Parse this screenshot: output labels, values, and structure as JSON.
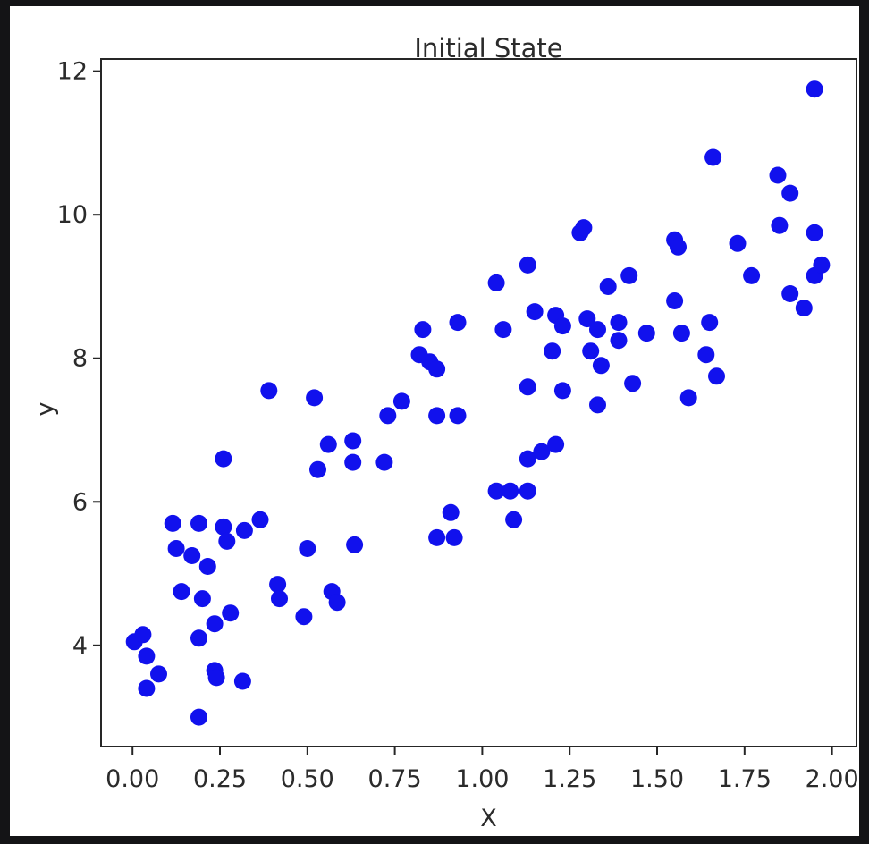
{
  "page": {
    "background_color": "#141416",
    "figure_background_color": "#ffffff"
  },
  "chart_data": {
    "type": "scatter",
    "title": "Initial State",
    "xlabel": "X",
    "ylabel": "y",
    "marker_color": "#1111ed",
    "axis_color": "#262626",
    "text_color": "#2b2b2b",
    "grid": false,
    "legend": "none",
    "xlim": [
      -0.09,
      2.07
    ],
    "ylim": [
      2.59,
      12.17
    ],
    "x_ticks": [
      {
        "v": 0.0,
        "label": "0.00"
      },
      {
        "v": 0.25,
        "label": "0.25"
      },
      {
        "v": 0.5,
        "label": "0.50"
      },
      {
        "v": 0.75,
        "label": "0.75"
      },
      {
        "v": 1.0,
        "label": "1.00"
      },
      {
        "v": 1.25,
        "label": "1.25"
      },
      {
        "v": 1.5,
        "label": "1.50"
      },
      {
        "v": 1.75,
        "label": "1.75"
      },
      {
        "v": 2.0,
        "label": "2.00"
      }
    ],
    "y_ticks": [
      {
        "v": 4,
        "label": "4"
      },
      {
        "v": 6,
        "label": "6"
      },
      {
        "v": 8,
        "label": "8"
      },
      {
        "v": 10,
        "label": "10"
      },
      {
        "v": 12,
        "label": "12"
      }
    ],
    "points": [
      [
        0.005,
        4.05
      ],
      [
        0.03,
        4.15
      ],
      [
        0.04,
        3.85
      ],
      [
        0.04,
        3.4
      ],
      [
        0.075,
        3.6
      ],
      [
        0.115,
        5.7
      ],
      [
        0.125,
        5.35
      ],
      [
        0.14,
        4.75
      ],
      [
        0.17,
        5.25
      ],
      [
        0.19,
        5.7
      ],
      [
        0.19,
        4.1
      ],
      [
        0.19,
        3.0
      ],
      [
        0.2,
        4.65
      ],
      [
        0.215,
        5.1
      ],
      [
        0.235,
        4.3
      ],
      [
        0.235,
        3.65
      ],
      [
        0.24,
        3.55
      ],
      [
        0.26,
        5.65
      ],
      [
        0.26,
        6.6
      ],
      [
        0.27,
        5.45
      ],
      [
        0.28,
        4.45
      ],
      [
        0.315,
        3.5
      ],
      [
        0.32,
        5.6
      ],
      [
        0.365,
        5.75
      ],
      [
        0.39,
        7.55
      ],
      [
        0.415,
        4.85
      ],
      [
        0.42,
        4.65
      ],
      [
        0.49,
        4.4
      ],
      [
        0.5,
        5.35
      ],
      [
        0.52,
        7.45
      ],
      [
        0.53,
        6.45
      ],
      [
        0.56,
        6.8
      ],
      [
        0.57,
        4.75
      ],
      [
        0.585,
        4.6
      ],
      [
        0.63,
        6.85
      ],
      [
        0.63,
        6.55
      ],
      [
        0.635,
        5.4
      ],
      [
        0.72,
        6.55
      ],
      [
        0.73,
        7.2
      ],
      [
        0.77,
        7.4
      ],
      [
        0.82,
        8.05
      ],
      [
        0.83,
        8.4
      ],
      [
        0.85,
        7.95
      ],
      [
        0.87,
        7.85
      ],
      [
        0.87,
        7.2
      ],
      [
        0.87,
        5.5
      ],
      [
        0.91,
        5.85
      ],
      [
        0.92,
        5.5
      ],
      [
        0.93,
        8.5
      ],
      [
        0.93,
        7.2
      ],
      [
        1.04,
        9.05
      ],
      [
        1.04,
        6.15
      ],
      [
        1.06,
        8.4
      ],
      [
        1.08,
        6.15
      ],
      [
        1.09,
        5.75
      ],
      [
        1.13,
        9.3
      ],
      [
        1.13,
        7.6
      ],
      [
        1.13,
        6.6
      ],
      [
        1.13,
        6.15
      ],
      [
        1.15,
        8.65
      ],
      [
        1.17,
        6.7
      ],
      [
        1.2,
        8.1
      ],
      [
        1.21,
        8.6
      ],
      [
        1.21,
        6.8
      ],
      [
        1.23,
        8.45
      ],
      [
        1.23,
        7.55
      ],
      [
        1.28,
        9.75
      ],
      [
        1.29,
        9.82
      ],
      [
        1.3,
        8.55
      ],
      [
        1.31,
        8.1
      ],
      [
        1.33,
        8.4
      ],
      [
        1.33,
        7.35
      ],
      [
        1.34,
        7.9
      ],
      [
        1.36,
        9.0
      ],
      [
        1.39,
        8.5
      ],
      [
        1.39,
        8.25
      ],
      [
        1.42,
        9.15
      ],
      [
        1.43,
        7.65
      ],
      [
        1.47,
        8.35
      ],
      [
        1.55,
        9.65
      ],
      [
        1.55,
        8.8
      ],
      [
        1.56,
        9.55
      ],
      [
        1.57,
        8.35
      ],
      [
        1.59,
        7.45
      ],
      [
        1.64,
        8.05
      ],
      [
        1.65,
        8.5
      ],
      [
        1.66,
        10.8
      ],
      [
        1.67,
        7.75
      ],
      [
        1.73,
        9.6
      ],
      [
        1.77,
        9.15
      ],
      [
        1.845,
        10.55
      ],
      [
        1.85,
        9.85
      ],
      [
        1.88,
        10.3
      ],
      [
        1.88,
        8.9
      ],
      [
        1.92,
        8.7
      ],
      [
        1.95,
        11.75
      ],
      [
        1.95,
        9.75
      ],
      [
        1.95,
        9.15
      ],
      [
        1.97,
        9.3
      ]
    ]
  }
}
